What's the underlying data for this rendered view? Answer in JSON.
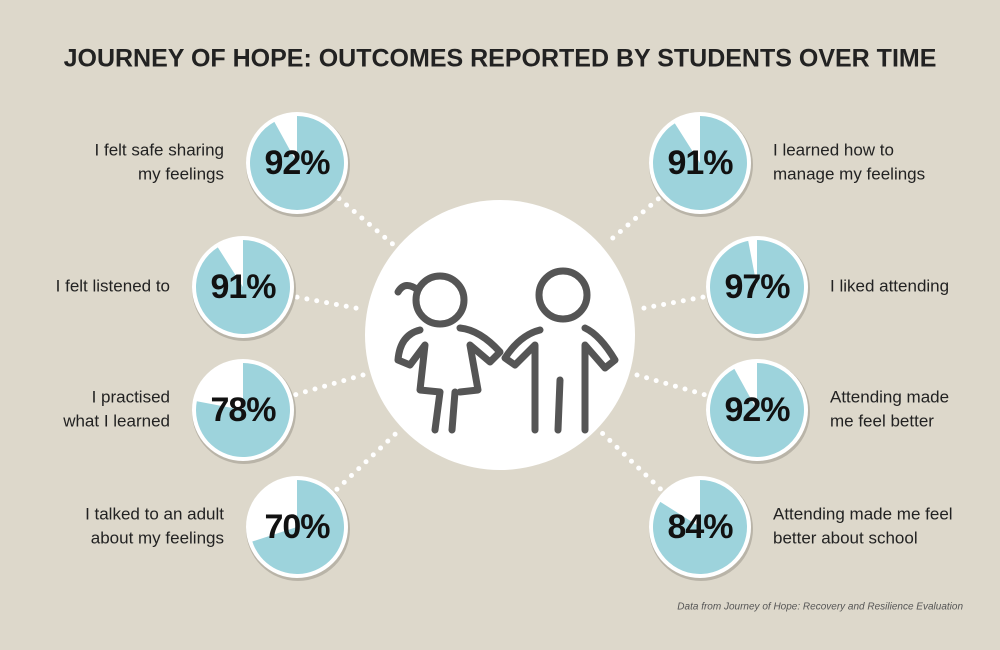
{
  "chart_data": {
    "type": "pie",
    "title": "JOURNEY OF HOPE: OUTCOMES REPORTED BY STUDENTS OVER TIME",
    "categories": [
      [
        "I felt safe sharing",
        "my feelings"
      ],
      [
        "I felt listened to"
      ],
      [
        "I practised",
        "what I learned"
      ],
      [
        "I talked to an adult",
        "about my feelings"
      ],
      [
        "I learned how to",
        "manage my feelings"
      ],
      [
        "I liked attending"
      ],
      [
        "Attending made",
        "me feel better"
      ],
      [
        "Attending made me feel",
        "better about school"
      ]
    ],
    "values": [
      92,
      91,
      78,
      70,
      91,
      97,
      92,
      84
    ],
    "value_labels": [
      "92%",
      "91%",
      "78%",
      "70%",
      "91%",
      "97%",
      "92%",
      "84%"
    ],
    "color": "#9dd3dc",
    "source": "Data from Journey of Hope: Recovery and Resilience Evaluation"
  }
}
